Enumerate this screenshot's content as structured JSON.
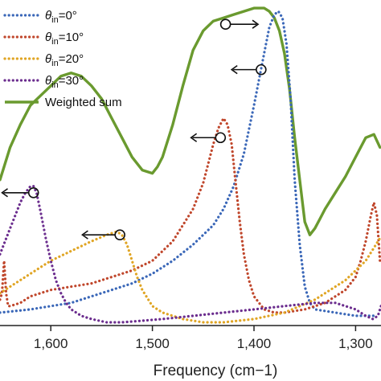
{
  "chart_data": {
    "type": "line",
    "xlabel": "Frequency (cm−1)",
    "xlim": [
      1650,
      1275
    ],
    "x_reversed": true,
    "ylim": [
      0,
      1
    ],
    "grid": false,
    "legend_position": "top-left",
    "x_ticks": [
      {
        "value": 1600,
        "label": "1,600"
      },
      {
        "value": 1500,
        "label": "1,500"
      },
      {
        "value": 1400,
        "label": "1,400"
      },
      {
        "value": 1300,
        "label": "1,300"
      }
    ],
    "series": [
      {
        "name": "θin=0°",
        "legend_base": "θ",
        "legend_sub": "in",
        "legend_rest": "=0°",
        "color": "#3a67b8",
        "style": "dotted",
        "x": [
          1650,
          1620,
          1600,
          1580,
          1560,
          1540,
          1520,
          1500,
          1480,
          1460,
          1440,
          1430,
          1420,
          1410,
          1400,
          1395,
          1390,
          1385,
          1380,
          1376,
          1372,
          1368,
          1364,
          1360,
          1355,
          1350,
          1345,
          1340,
          1320,
          1300,
          1280
        ],
        "y": [
          0.04,
          0.05,
          0.06,
          0.07,
          0.09,
          0.11,
          0.13,
          0.16,
          0.2,
          0.25,
          0.31,
          0.36,
          0.43,
          0.53,
          0.68,
          0.76,
          0.84,
          0.92,
          0.96,
          0.97,
          0.95,
          0.87,
          0.7,
          0.45,
          0.25,
          0.12,
          0.07,
          0.05,
          0.04,
          0.03,
          0.03
        ]
      },
      {
        "name": "θin=10°",
        "legend_base": "θ",
        "legend_sub": "in",
        "legend_rest": "=10°",
        "color": "#c0472c",
        "style": "dotted",
        "x": [
          1650,
          1648,
          1646,
          1644,
          1642,
          1640,
          1630,
          1620,
          1600,
          1580,
          1560,
          1540,
          1520,
          1500,
          1480,
          1460,
          1450,
          1445,
          1440,
          1435,
          1430,
          1426,
          1422,
          1418,
          1414,
          1410,
          1405,
          1400,
          1390,
          1380,
          1370,
          1350,
          1330,
          1310,
          1300,
          1295,
          1290,
          1285,
          1282,
          1279,
          1276
        ],
        "y": [
          0.08,
          0.1,
          0.2,
          0.1,
          0.06,
          0.06,
          0.07,
          0.09,
          0.11,
          0.12,
          0.13,
          0.15,
          0.17,
          0.2,
          0.26,
          0.36,
          0.44,
          0.5,
          0.56,
          0.61,
          0.64,
          0.62,
          0.56,
          0.44,
          0.32,
          0.22,
          0.14,
          0.09,
          0.05,
          0.04,
          0.04,
          0.05,
          0.07,
          0.11,
          0.15,
          0.2,
          0.26,
          0.34,
          0.38,
          0.34,
          0.2
        ]
      },
      {
        "name": "θin=20°",
        "legend_base": "θ",
        "legend_sub": "in",
        "legend_rest": "=20°",
        "color": "#e0a524",
        "style": "dotted",
        "x": [
          1650,
          1640,
          1620,
          1600,
          1580,
          1560,
          1545,
          1535,
          1530,
          1525,
          1520,
          1515,
          1510,
          1500,
          1490,
          1470,
          1450,
          1430,
          1400,
          1370,
          1340,
          1310,
          1290,
          1280,
          1276
        ],
        "y": [
          0.1,
          0.12,
          0.16,
          0.2,
          0.23,
          0.26,
          0.28,
          0.29,
          0.28,
          0.25,
          0.2,
          0.15,
          0.11,
          0.06,
          0.04,
          0.02,
          0.01,
          0.01,
          0.02,
          0.04,
          0.08,
          0.14,
          0.2,
          0.25,
          0.27
        ]
      },
      {
        "name": "θin=30°",
        "legend_base": "θ",
        "legend_sub": "in",
        "legend_rest": "=30°",
        "color": "#6b2d8e",
        "style": "dotted",
        "x": [
          1650,
          1640,
          1630,
          1625,
          1620,
          1617,
          1614,
          1610,
          1605,
          1600,
          1595,
          1590,
          1585,
          1580,
          1570,
          1560,
          1545,
          1530,
          1510,
          1490,
          1460,
          1430,
          1400,
          1370,
          1340,
          1320,
          1310,
          1300,
          1290,
          1283,
          1278,
          1275
        ],
        "y": [
          0.22,
          0.3,
          0.38,
          0.41,
          0.43,
          0.43,
          0.41,
          0.35,
          0.27,
          0.2,
          0.14,
          0.1,
          0.07,
          0.05,
          0.03,
          0.02,
          0.01,
          0.01,
          0.015,
          0.02,
          0.03,
          0.04,
          0.05,
          0.06,
          0.07,
          0.07,
          0.06,
          0.05,
          0.03,
          0.02,
          0.03,
          0.06
        ]
      },
      {
        "name": "Weighted sum",
        "color": "#6a9a2f",
        "style": "solid",
        "x": [
          1650,
          1645,
          1640,
          1630,
          1620,
          1600,
          1590,
          1580,
          1570,
          1560,
          1550,
          1540,
          1530,
          1520,
          1510,
          1500,
          1495,
          1490,
          1480,
          1470,
          1460,
          1450,
          1440,
          1430,
          1420,
          1410,
          1400,
          1395,
          1390,
          1385,
          1380,
          1375,
          1370,
          1365,
          1360,
          1355,
          1350,
          1345,
          1340,
          1335,
          1330,
          1320,
          1310,
          1300,
          1290,
          1282,
          1276
        ],
        "y": [
          0.45,
          0.5,
          0.55,
          0.62,
          0.68,
          0.74,
          0.77,
          0.78,
          0.77,
          0.74,
          0.7,
          0.64,
          0.58,
          0.52,
          0.48,
          0.47,
          0.49,
          0.52,
          0.62,
          0.74,
          0.85,
          0.91,
          0.94,
          0.95,
          0.96,
          0.97,
          0.98,
          0.98,
          0.98,
          0.97,
          0.95,
          0.91,
          0.84,
          0.73,
          0.58,
          0.45,
          0.32,
          0.28,
          0.3,
          0.33,
          0.36,
          0.41,
          0.46,
          0.52,
          0.58,
          0.59,
          0.55
        ]
      }
    ],
    "arrows": [
      {
        "series": "θin=0°",
        "x": 1393,
        "y": 0.79,
        "to_x": 1422
      },
      {
        "series": "Weighted sum",
        "x": 1428,
        "y": 0.93,
        "to_x": 1396
      },
      {
        "series": "θin=10°",
        "x": 1433,
        "y": 0.58,
        "to_x": 1462
      },
      {
        "series": "θin=20°",
        "x": 1532,
        "y": 0.28,
        "to_x": 1569
      },
      {
        "series": "θin=30°",
        "x": 1617,
        "y": 0.41,
        "to_x": 1648
      }
    ]
  }
}
